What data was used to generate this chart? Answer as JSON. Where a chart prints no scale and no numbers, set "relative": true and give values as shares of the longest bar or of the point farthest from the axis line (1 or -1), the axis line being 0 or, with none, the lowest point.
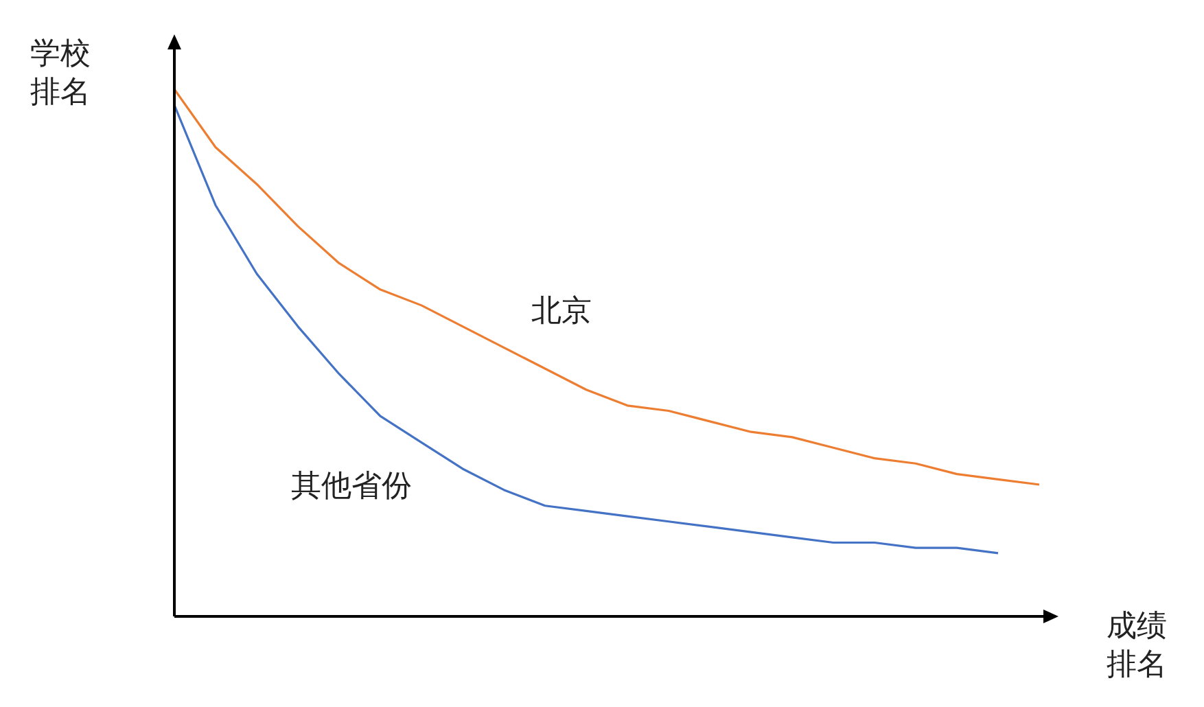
{
  "chart_data": {
    "type": "line",
    "relative": true,
    "xlabel": "成绩排名",
    "ylabel": "学校排名",
    "marker": "none",
    "categories": [
      null,
      null,
      null,
      null,
      null,
      null,
      null,
      null,
      null,
      null,
      null,
      null,
      null,
      null,
      null,
      null,
      null,
      null,
      null,
      null,
      null,
      null
    ],
    "series": [
      {
        "name": "北京",
        "color": "#ed7d31",
        "values": [
          1.0,
          0.89,
          0.82,
          0.74,
          0.67,
          0.62,
          0.59,
          0.55,
          0.51,
          0.47,
          0.43,
          0.4,
          0.39,
          0.37,
          0.35,
          0.34,
          0.32,
          0.3,
          0.29,
          0.27,
          0.26,
          0.25
        ]
      },
      {
        "name": "其他省份",
        "color": "#4472c4",
        "values": [
          0.97,
          0.78,
          0.65,
          0.55,
          0.46,
          0.38,
          0.33,
          0.28,
          0.24,
          0.21,
          0.2,
          0.19,
          0.18,
          0.17,
          0.16,
          0.15,
          0.14,
          0.14,
          0.13,
          0.13,
          0.12,
          null
        ]
      }
    ]
  }
}
